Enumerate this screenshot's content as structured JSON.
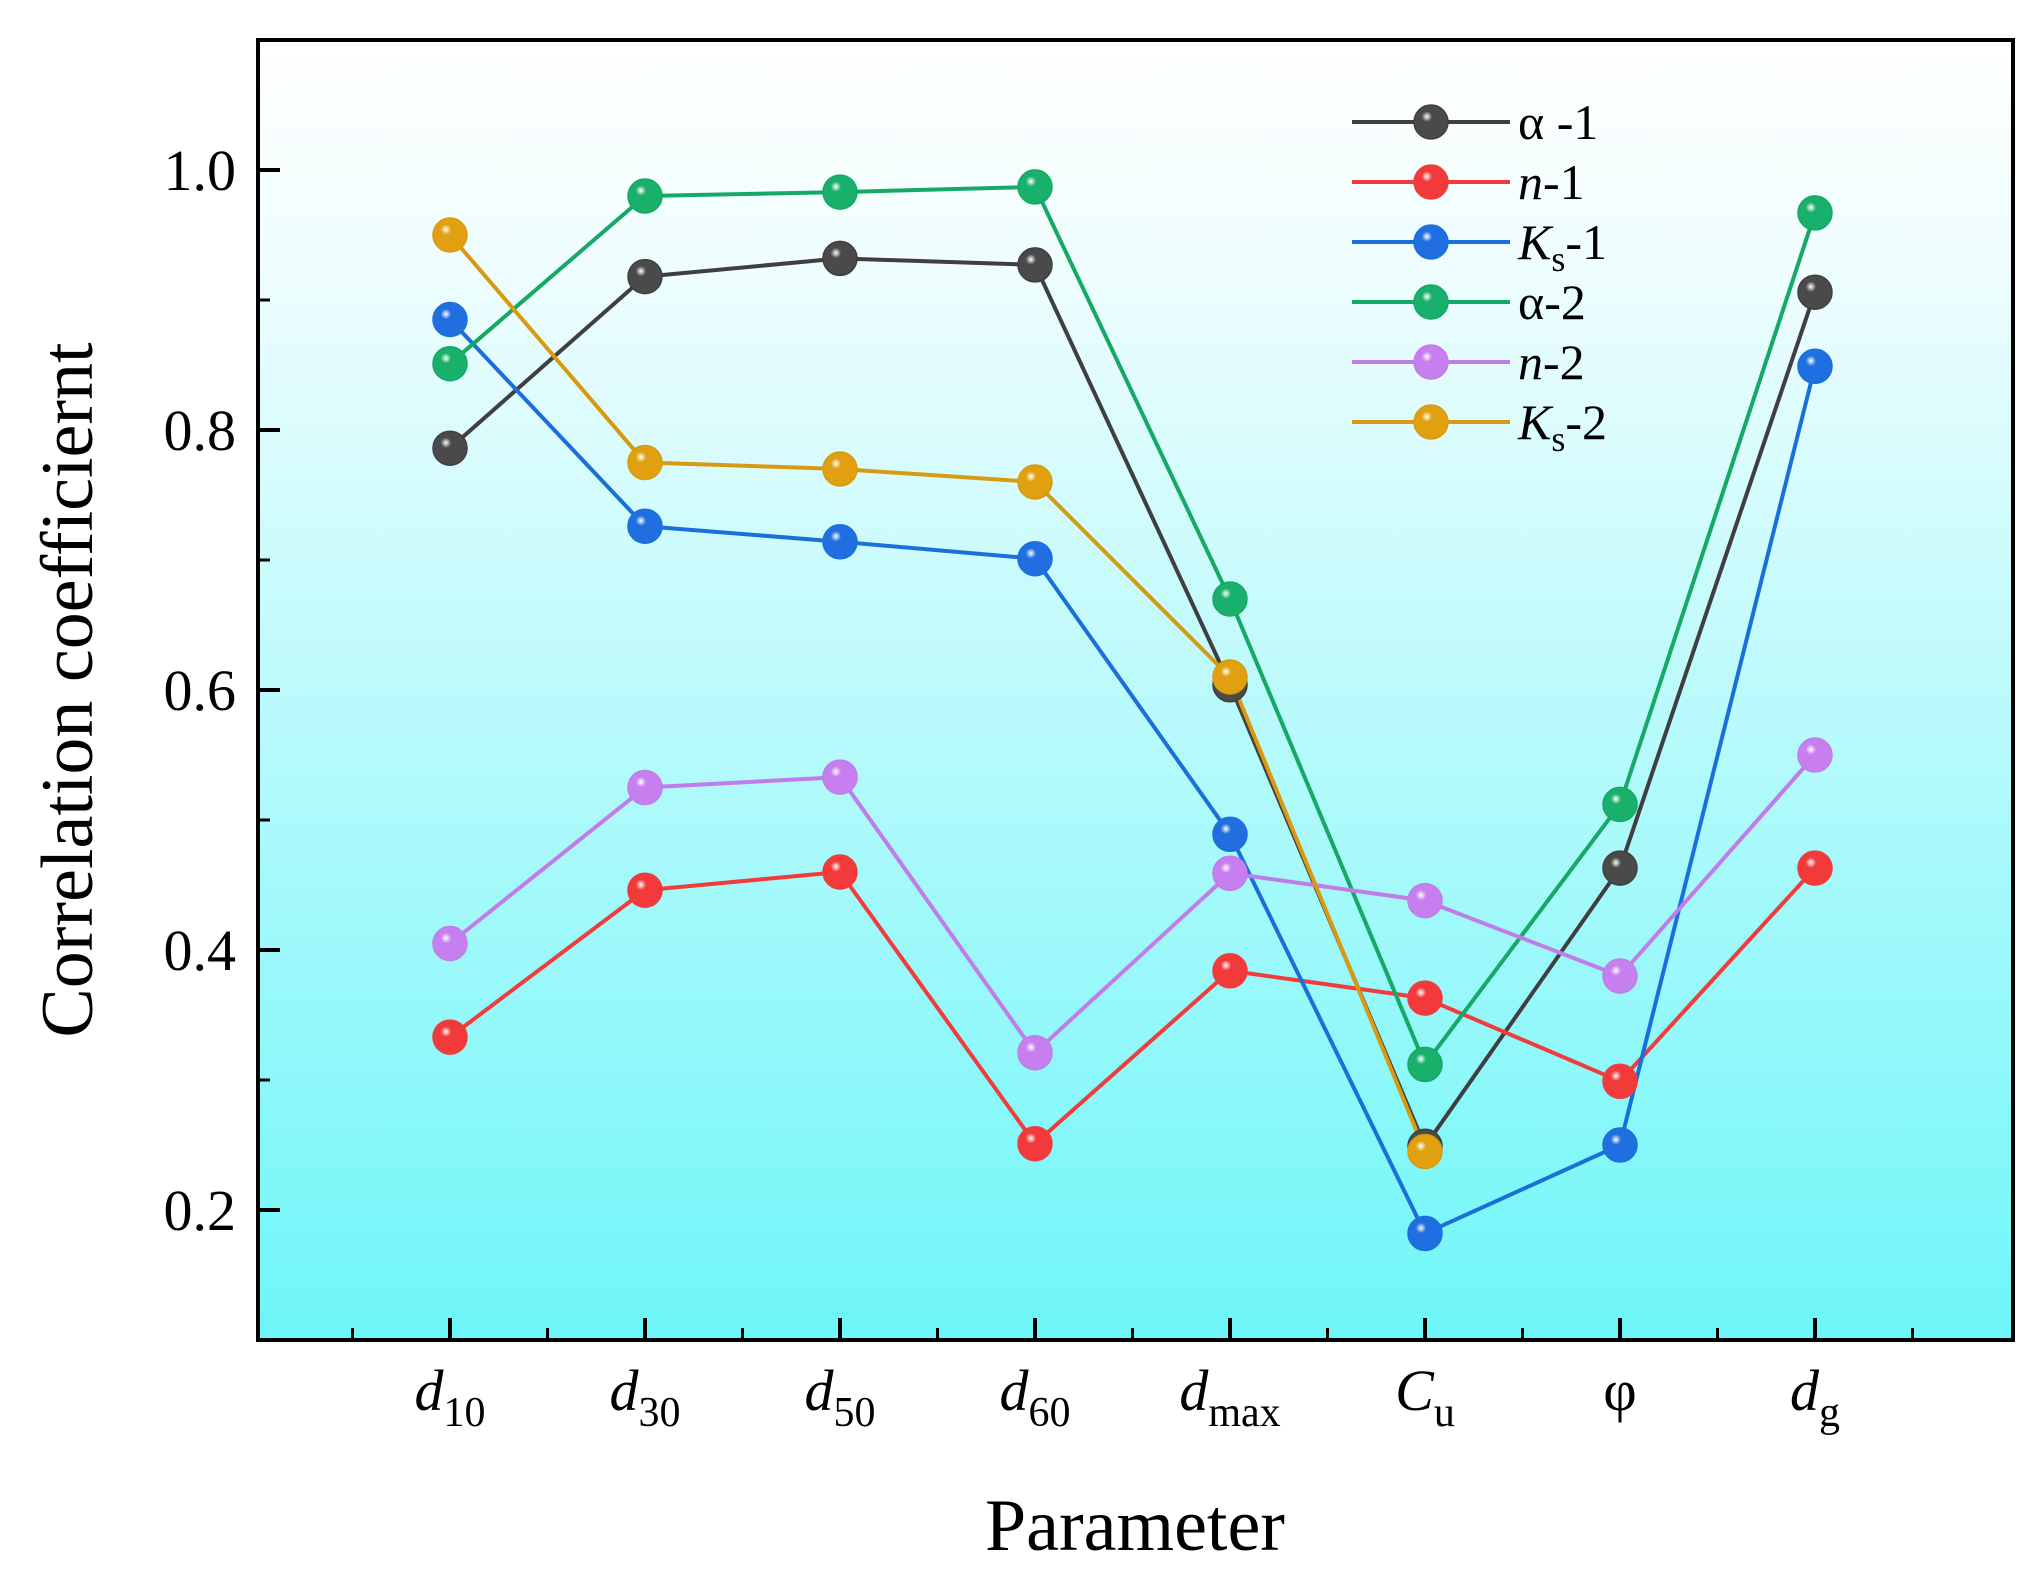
{
  "chart_data": {
    "type": "line",
    "xlabel": "Parameter",
    "ylabel": "Correlation coefficiernt",
    "ylim": [
      0.1,
      1.1
    ],
    "yticks": [
      0.2,
      0.4,
      0.6,
      0.8,
      1.0
    ],
    "ytick_labels": [
      "0.2",
      "0.4",
      "0.6",
      "0.8",
      "1.0"
    ],
    "legend_position": "top-right",
    "categories": [
      {
        "main": "d",
        "sub": "10",
        "italic": true
      },
      {
        "main": "d",
        "sub": "30",
        "italic": true
      },
      {
        "main": "d",
        "sub": "50",
        "italic": true
      },
      {
        "main": "d",
        "sub": "60",
        "italic": true
      },
      {
        "main": "d",
        "sub": "max",
        "italic": true
      },
      {
        "main": "C",
        "sub": "u",
        "italic": true
      },
      {
        "main": "φ",
        "sub": "",
        "italic": false
      },
      {
        "main": "d",
        "sub": "g",
        "italic": true
      }
    ],
    "series": [
      {
        "name": "α -1",
        "label_main": "α -1",
        "label_sub": "",
        "label_suffix": "",
        "italic": false,
        "color": "#3f3f3f",
        "marker_color": "#4a4a4a",
        "values": [
          0.786,
          0.918,
          0.932,
          0.927,
          0.604,
          0.249,
          0.463,
          0.906
        ]
      },
      {
        "name": "n-1",
        "label_main": "n",
        "label_sub": "",
        "label_suffix": "-1",
        "italic": true,
        "color": "#f03c3c",
        "marker_color": "#f23a3a",
        "values": [
          0.333,
          0.446,
          0.46,
          0.251,
          0.384,
          0.363,
          0.299,
          0.463
        ]
      },
      {
        "name": "Ks-1",
        "label_main": "K",
        "label_sub": "s",
        "label_suffix": "-1",
        "italic": true,
        "color": "#1a6fd8",
        "marker_color": "#1f6fe0",
        "values": [
          0.885,
          0.726,
          0.714,
          0.701,
          0.489,
          0.182,
          0.25,
          0.849
        ]
      },
      {
        "name": "α-2",
        "label_main": "α-2",
        "label_sub": "",
        "label_suffix": "",
        "italic": false,
        "color": "#16a865",
        "marker_color": "#18b06a",
        "values": [
          0.851,
          0.98,
          0.983,
          0.987,
          0.67,
          0.312,
          0.512,
          0.967
        ]
      },
      {
        "name": "n-2",
        "label_main": "n",
        "label_sub": "",
        "label_suffix": "-2",
        "italic": true,
        "color": "#c07ce8",
        "marker_color": "#c77ff0",
        "values": [
          0.405,
          0.525,
          0.533,
          0.321,
          0.459,
          0.438,
          0.38,
          0.55
        ]
      },
      {
        "name": "Ks-2",
        "label_main": "K",
        "label_sub": "s",
        "label_suffix": "-2",
        "italic": true,
        "color": "#d89a12",
        "marker_color": "#e0a010",
        "values": [
          0.95,
          0.775,
          0.77,
          0.76,
          0.61,
          0.245,
          null,
          null
        ]
      }
    ]
  }
}
